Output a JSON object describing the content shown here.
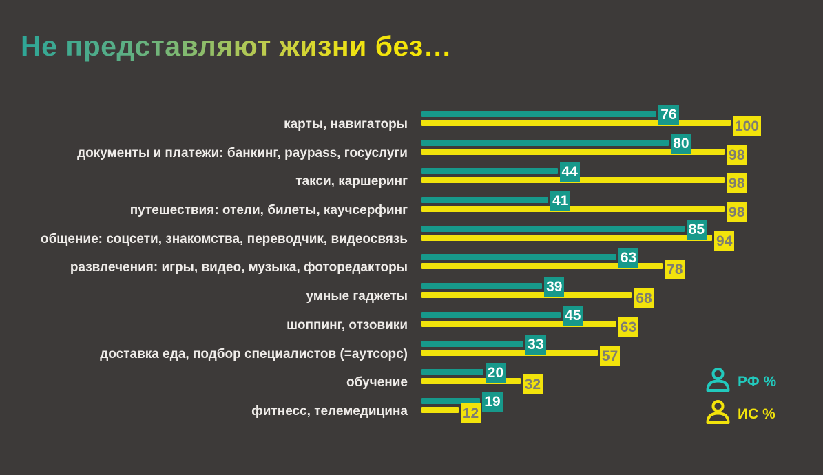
{
  "title": {
    "text": "Не представляют жизни без…"
  },
  "chart_data": {
    "type": "bar",
    "orientation": "horizontal",
    "title": "Не представляют жизни без…",
    "xlabel": "",
    "ylabel": "",
    "xlim": [
      0,
      100
    ],
    "grid": false,
    "value_labels": true,
    "legend_position": "bottom-right",
    "categories": [
      "карты, навигаторы",
      "документы и платежи: банкинг, paypass, госуслуги",
      "такси, каршеринг",
      "путешествия: отели, билеты, каучсерфинг",
      "общение: соцсети, знакомства, переводчик, видеосвязь",
      "развлечения: игры, видео, музыка, фоторедакторы",
      "умные гаджеты",
      "шоппинг, отзовики",
      "доставка еда, подбор специалистов (=аутсорс)",
      "обучение",
      "фитнесс, телемедицина"
    ],
    "series": [
      {
        "name": "РФ %",
        "key": "rf",
        "color": "#17998b",
        "values": [
          76,
          80,
          44,
          41,
          85,
          63,
          39,
          45,
          33,
          20,
          19
        ]
      },
      {
        "name": "ИС %",
        "key": "is",
        "color": "#f2e30b",
        "values": [
          100,
          98,
          98,
          98,
          94,
          78,
          68,
          63,
          57,
          32,
          12
        ]
      }
    ]
  },
  "legend": {
    "items": [
      {
        "label": "РФ %",
        "icon": "person-icon",
        "color": "#22c9bd"
      },
      {
        "label": "ИС %",
        "icon": "person-icon",
        "color": "#f2e30b"
      }
    ]
  },
  "colors": {
    "background": "#3d3a39",
    "rf_bar": "#17998b",
    "is_bar": "#f2e30b",
    "rf_value_text": "#ffffff",
    "is_value_text": "#7e7d72",
    "category_text": "#efece9",
    "title_gradient_start": "#2ea697",
    "title_gradient_end": "#f7e600"
  }
}
